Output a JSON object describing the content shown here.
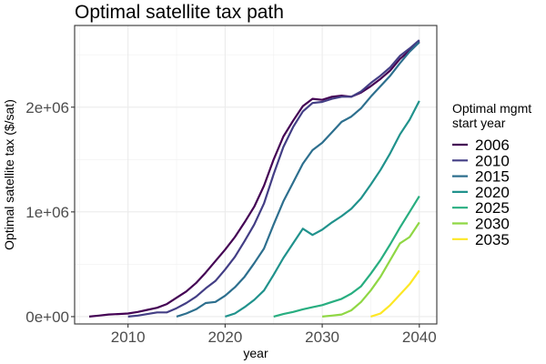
{
  "chart_data": {
    "type": "line",
    "title": "Optimal satellite tax path",
    "xlabel": "year",
    "ylabel": "Optimal satellite tax ($/sat)",
    "xlim": [
      2004.5,
      2041.8
    ],
    "ylim": [
      -70000,
      2780000
    ],
    "x_ticks": [
      2010,
      2020,
      2030,
      2040
    ],
    "x_tick_labels": [
      "2010",
      "2020",
      "2030",
      "2040"
    ],
    "y_ticks": [
      0,
      1000000,
      2000000
    ],
    "y_tick_labels": [
      "0e+00",
      "1e+06",
      "2e+06"
    ],
    "grid": true,
    "legend": {
      "title_lines": [
        "Optimal mgmt",
        "start year"
      ],
      "position": "right"
    },
    "series": [
      {
        "name": "2006",
        "color": "#440154",
        "x": [
          2006,
          2007,
          2008,
          2009,
          2010,
          2011,
          2012,
          2013,
          2014,
          2015,
          2016,
          2017,
          2018,
          2019,
          2020,
          2021,
          2022,
          2023,
          2024,
          2025,
          2026,
          2027,
          2028,
          2029,
          2030,
          2031,
          2032,
          2033,
          2034,
          2035,
          2036,
          2037,
          2038,
          2039,
          2040
        ],
        "y": [
          0,
          10000,
          20000,
          25000,
          30000,
          45000,
          65000,
          85000,
          120000,
          180000,
          240000,
          320000,
          420000,
          530000,
          640000,
          760000,
          900000,
          1050000,
          1250000,
          1500000,
          1720000,
          1870000,
          2010000,
          2080000,
          2070000,
          2100000,
          2110000,
          2100000,
          2140000,
          2200000,
          2270000,
          2350000,
          2460000,
          2540000,
          2630000
        ]
      },
      {
        "name": "2010",
        "color": "#433e85",
        "x": [
          2010,
          2011,
          2012,
          2013,
          2014,
          2015,
          2016,
          2017,
          2018,
          2019,
          2020,
          2021,
          2022,
          2023,
          2024,
          2025,
          2026,
          2027,
          2028,
          2029,
          2030,
          2031,
          2032,
          2033,
          2034,
          2035,
          2036,
          2037,
          2038,
          2039,
          2040
        ],
        "y": [
          0,
          10000,
          25000,
          40000,
          40000,
          80000,
          130000,
          190000,
          270000,
          340000,
          450000,
          570000,
          720000,
          880000,
          1080000,
          1360000,
          1620000,
          1810000,
          1960000,
          2040000,
          2050000,
          2080000,
          2100000,
          2100000,
          2150000,
          2230000,
          2300000,
          2380000,
          2490000,
          2560000,
          2640000
        ]
      },
      {
        "name": "2015",
        "color": "#2d6f8e",
        "x": [
          2015,
          2016,
          2017,
          2018,
          2019,
          2020,
          2021,
          2022,
          2023,
          2024,
          2025,
          2026,
          2027,
          2028,
          2029,
          2030,
          2031,
          2032,
          2033,
          2034,
          2035,
          2036,
          2037,
          2038,
          2039,
          2040
        ],
        "y": [
          0,
          30000,
          70000,
          130000,
          140000,
          200000,
          280000,
          380000,
          510000,
          650000,
          880000,
          1100000,
          1280000,
          1460000,
          1590000,
          1660000,
          1760000,
          1860000,
          1910000,
          1990000,
          2100000,
          2200000,
          2300000,
          2420000,
          2530000,
          2620000
        ]
      },
      {
        "name": "2020",
        "color": "#20928c",
        "x": [
          2020,
          2021,
          2022,
          2023,
          2024,
          2025,
          2026,
          2027,
          2028,
          2029,
          2030,
          2031,
          2032,
          2033,
          2034,
          2035,
          2036,
          2037,
          2038,
          2039,
          2040
        ],
        "y": [
          0,
          30000,
          90000,
          160000,
          250000,
          400000,
          560000,
          700000,
          840000,
          780000,
          830000,
          900000,
          960000,
          1030000,
          1130000,
          1260000,
          1400000,
          1560000,
          1740000,
          1880000,
          2060000
        ]
      },
      {
        "name": "2025",
        "color": "#28ae80",
        "x": [
          2025,
          2026,
          2027,
          2028,
          2029,
          2030,
          2031,
          2032,
          2033,
          2034,
          2035,
          2036,
          2037,
          2038,
          2039,
          2040
        ],
        "y": [
          0,
          25000,
          45000,
          70000,
          90000,
          110000,
          140000,
          170000,
          220000,
          290000,
          410000,
          540000,
          690000,
          850000,
          1000000,
          1150000
        ]
      },
      {
        "name": "2030",
        "color": "#8fd744",
        "x": [
          2030,
          2031,
          2032,
          2033,
          2034,
          2035,
          2036,
          2037,
          2038,
          2039,
          2040
        ],
        "y": [
          0,
          10000,
          20000,
          60000,
          140000,
          250000,
          380000,
          540000,
          700000,
          760000,
          900000
        ]
      },
      {
        "name": "2035",
        "color": "#fde725",
        "x": [
          2035,
          2036,
          2037,
          2038,
          2039,
          2040
        ],
        "y": [
          0,
          30000,
          110000,
          210000,
          310000,
          440000
        ]
      }
    ]
  }
}
